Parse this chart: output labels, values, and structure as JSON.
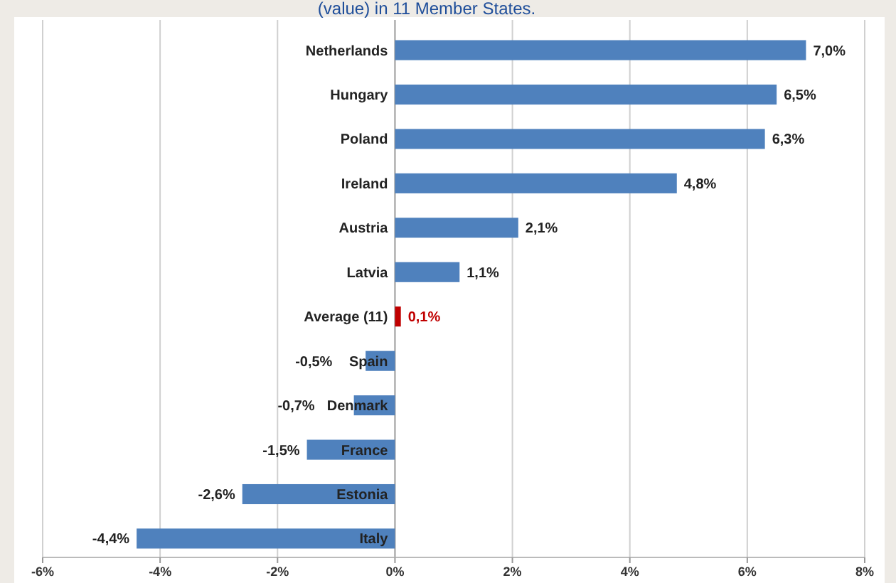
{
  "chart_data": {
    "type": "bar",
    "orientation": "horizontal",
    "title": "(value) in 11 Member States.",
    "categories": [
      "Netherlands",
      "Hungary",
      "Poland",
      "Ireland",
      "Austria",
      "Latvia",
      "Average (11)",
      "Spain",
      "Denmark",
      "France",
      "Estonia",
      "Italy"
    ],
    "values": [
      7.0,
      6.5,
      6.3,
      4.8,
      2.1,
      1.1,
      0.1,
      -0.5,
      -0.7,
      -1.5,
      -2.6,
      -4.4
    ],
    "colors": [
      "#4f81bd",
      "#4f81bd",
      "#4f81bd",
      "#4f81bd",
      "#4f81bd",
      "#4f81bd",
      "#c00000",
      "#4f81bd",
      "#4f81bd",
      "#4f81bd",
      "#4f81bd",
      "#4f81bd"
    ],
    "value_labels": [
      "7,0%",
      "6,5%",
      "6,3%",
      "4,8%",
      "2,1%",
      "1,1%",
      "0,1%",
      "-0,5%",
      "-0,7%",
      "-1,5%",
      "-2,6%",
      "-4,4%"
    ],
    "xlim": [
      -6,
      8
    ],
    "xticks": [
      {
        "value": -6,
        "label": "-6%"
      },
      {
        "value": -4,
        "label": "-4%"
      },
      {
        "value": -2,
        "label": "-2%"
      },
      {
        "value": 0,
        "label": "0%"
      },
      {
        "value": 2,
        "label": "2%"
      },
      {
        "value": 4,
        "label": "4%"
      },
      {
        "value": 6,
        "label": "6%"
      },
      {
        "value": 8,
        "label": "8%"
      }
    ],
    "grid": "x"
  }
}
